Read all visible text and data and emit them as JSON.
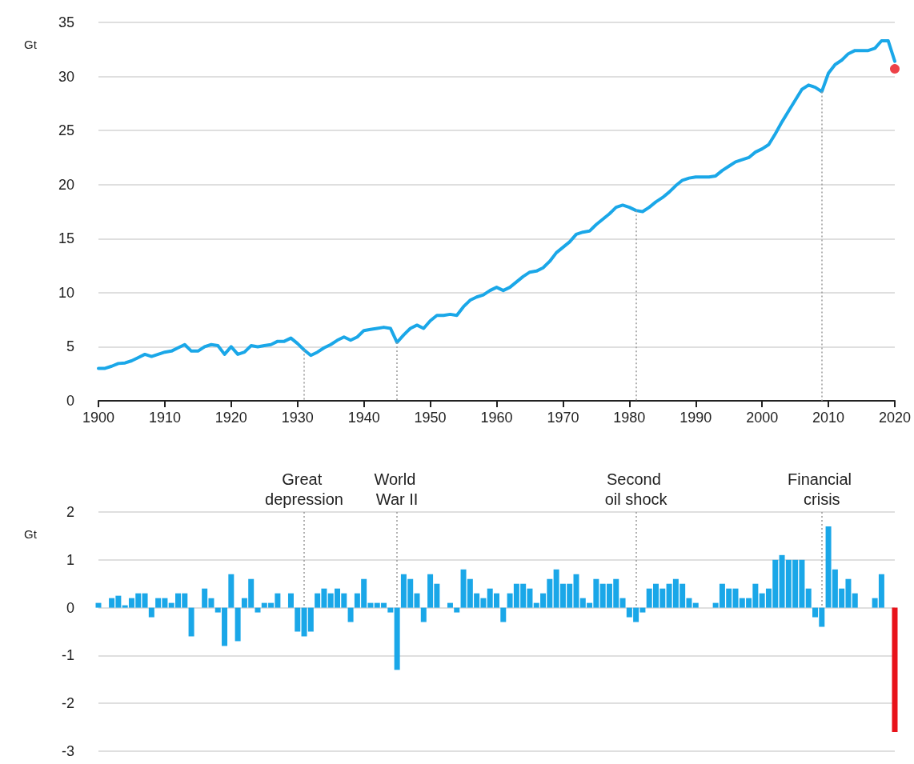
{
  "chart_data": [
    {
      "type": "line",
      "ylabel": "Gt",
      "x": [
        1900,
        1901,
        1902,
        1903,
        1904,
        1905,
        1906,
        1907,
        1908,
        1909,
        1910,
        1911,
        1912,
        1913,
        1914,
        1915,
        1916,
        1917,
        1918,
        1919,
        1920,
        1921,
        1922,
        1923,
        1924,
        1925,
        1926,
        1927,
        1928,
        1929,
        1930,
        1931,
        1932,
        1933,
        1934,
        1935,
        1936,
        1937,
        1938,
        1939,
        1940,
        1941,
        1942,
        1943,
        1944,
        1945,
        1946,
        1947,
        1948,
        1949,
        1950,
        1951,
        1952,
        1953,
        1954,
        1955,
        1956,
        1957,
        1958,
        1959,
        1960,
        1961,
        1962,
        1963,
        1964,
        1965,
        1966,
        1967,
        1968,
        1969,
        1970,
        1971,
        1972,
        1973,
        1974,
        1975,
        1976,
        1977,
        1978,
        1979,
        1980,
        1981,
        1982,
        1983,
        1984,
        1985,
        1986,
        1987,
        1988,
        1989,
        1990,
        1991,
        1992,
        1993,
        1994,
        1995,
        1996,
        1997,
        1998,
        1999,
        2000,
        2001,
        2002,
        2003,
        2004,
        2005,
        2006,
        2007,
        2008,
        2009,
        2010,
        2011,
        2012,
        2013,
        2014,
        2015,
        2016,
        2017,
        2018,
        2019,
        2020
      ],
      "series": [
        {
          "color": "#1aa7e8",
          "values": [
            3.0,
            3.0,
            3.2,
            3.45,
            3.5,
            3.7,
            4.0,
            4.3,
            4.1,
            4.3,
            4.5,
            4.6,
            4.9,
            5.2,
            4.6,
            4.6,
            5.0,
            5.2,
            5.1,
            4.3,
            5.0,
            4.3,
            4.5,
            5.1,
            5.0,
            5.1,
            5.2,
            5.5,
            5.5,
            5.8,
            5.3,
            4.7,
            4.2,
            4.5,
            4.9,
            5.2,
            5.6,
            5.9,
            5.6,
            5.9,
            6.5,
            6.6,
            6.7,
            6.8,
            6.7,
            5.4,
            6.1,
            6.7,
            7.0,
            6.7,
            7.4,
            7.9,
            7.9,
            8.0,
            7.9,
            8.7,
            9.3,
            9.6,
            9.8,
            10.2,
            10.5,
            10.2,
            10.5,
            11.0,
            11.5,
            11.9,
            12.0,
            12.3,
            12.9,
            13.7,
            14.2,
            14.7,
            15.4,
            15.6,
            15.7,
            16.3,
            16.8,
            17.3,
            17.9,
            18.1,
            17.9,
            17.6,
            17.5,
            17.9,
            18.4,
            18.8,
            19.3,
            19.9,
            20.4,
            20.6,
            20.7,
            20.7,
            20.7,
            20.8,
            21.3,
            21.7,
            22.1,
            22.3,
            22.5,
            23.0,
            23.3,
            23.7,
            24.7,
            25.8,
            26.8,
            27.8,
            28.8,
            29.2,
            29.0,
            28.6,
            30.3,
            31.1,
            31.5,
            32.1,
            32.4,
            32.4,
            32.4,
            32.6,
            33.3,
            33.3,
            31.4
          ]
        },
        {
          "type": "scatter",
          "marker": "circle",
          "color": "#e8121a",
          "x": [
            2020
          ],
          "values": [
            30.7
          ]
        }
      ],
      "xlim": [
        1900,
        2020
      ],
      "xticks": [
        1900,
        1910,
        1920,
        1930,
        1940,
        1950,
        1960,
        1970,
        1980,
        1990,
        2000,
        2010,
        2020
      ],
      "ylim": [
        0,
        35
      ],
      "yticks": [
        0,
        5,
        10,
        15,
        20,
        25,
        30,
        35
      ],
      "grid": "y",
      "marker": "none",
      "ref_lines": [
        {
          "axis": "x",
          "value": 1931,
          "color": "#999999",
          "line_style": "dotted"
        },
        {
          "axis": "x",
          "value": 1945,
          "color": "#999999",
          "line_style": "dotted"
        },
        {
          "axis": "x",
          "value": 1981,
          "color": "#999999",
          "line_style": "dotted"
        },
        {
          "axis": "x",
          "value": 2009,
          "color": "#999999",
          "line_style": "dotted"
        }
      ]
    },
    {
      "type": "bar",
      "ylabel": "Gt",
      "x": [
        1900,
        1901,
        1902,
        1903,
        1904,
        1905,
        1906,
        1907,
        1908,
        1909,
        1910,
        1911,
        1912,
        1913,
        1914,
        1915,
        1916,
        1917,
        1918,
        1919,
        1920,
        1921,
        1922,
        1923,
        1924,
        1925,
        1926,
        1927,
        1928,
        1929,
        1930,
        1931,
        1932,
        1933,
        1934,
        1935,
        1936,
        1937,
        1938,
        1939,
        1940,
        1941,
        1942,
        1943,
        1944,
        1945,
        1946,
        1947,
        1948,
        1949,
        1950,
        1951,
        1952,
        1953,
        1954,
        1955,
        1956,
        1957,
        1958,
        1959,
        1960,
        1961,
        1962,
        1963,
        1964,
        1965,
        1966,
        1967,
        1968,
        1969,
        1970,
        1971,
        1972,
        1973,
        1974,
        1975,
        1976,
        1977,
        1978,
        1979,
        1980,
        1981,
        1982,
        1983,
        1984,
        1985,
        1986,
        1987,
        1988,
        1989,
        1990,
        1991,
        1992,
        1993,
        1994,
        1995,
        1996,
        1997,
        1998,
        1999,
        2000,
        2001,
        2002,
        2003,
        2004,
        2005,
        2006,
        2007,
        2008,
        2009,
        2010,
        2011,
        2012,
        2013,
        2014,
        2015,
        2016,
        2017,
        2018,
        2019
      ],
      "series": [
        {
          "color": "#1aa7e8",
          "values": [
            0.1,
            0.0,
            0.2,
            0.25,
            0.05,
            0.2,
            0.3,
            0.3,
            -0.2,
            0.2,
            0.2,
            0.1,
            0.3,
            0.3,
            -0.6,
            0.0,
            0.4,
            0.2,
            -0.1,
            -0.8,
            0.7,
            -0.7,
            0.2,
            0.6,
            -0.1,
            0.1,
            0.1,
            0.3,
            0.0,
            0.3,
            -0.5,
            -0.6,
            -0.5,
            0.3,
            0.4,
            0.3,
            0.4,
            0.3,
            -0.3,
            0.3,
            0.6,
            0.1,
            0.1,
            0.1,
            -0.1,
            -1.3,
            0.7,
            0.6,
            0.3,
            -0.3,
            0.7,
            0.5,
            0.0,
            0.1,
            -0.1,
            0.8,
            0.6,
            0.3,
            0.2,
            0.4,
            0.3,
            -0.3,
            0.3,
            0.5,
            0.5,
            0.4,
            0.1,
            0.3,
            0.6,
            0.8,
            0.5,
            0.5,
            0.7,
            0.2,
            0.1,
            0.6,
            0.5,
            0.5,
            0.6,
            0.2,
            -0.2,
            -0.3,
            -0.1,
            0.4,
            0.5,
            0.4,
            0.5,
            0.6,
            0.5,
            0.2,
            0.1,
            0.0,
            0.0,
            0.1,
            0.5,
            0.4,
            0.4,
            0.2,
            0.2,
            0.5,
            0.3,
            0.4,
            1.0,
            1.1,
            1.0,
            1.0,
            1.0,
            0.4,
            -0.2,
            -0.4,
            1.7,
            0.8,
            0.4,
            0.6,
            0.3,
            0.0,
            0.0,
            0.2,
            0.7,
            0.0
          ]
        },
        {
          "color": "#e8121a",
          "x": [
            2020
          ],
          "values": [
            -2.6
          ]
        }
      ],
      "xlim": [
        1900,
        2020
      ],
      "ylim": [
        -3,
        2
      ],
      "yticks": [
        -3,
        -2,
        -1,
        0,
        1,
        2
      ],
      "grid": "y",
      "tick_labels": "y",
      "ref_lines": [
        {
          "axis": "x",
          "value": 1931,
          "label": "Great depression",
          "color": "#999999",
          "line_style": "dotted"
        },
        {
          "axis": "x",
          "value": 1945,
          "label": "World War II",
          "color": "#999999",
          "line_style": "dotted"
        },
        {
          "axis": "x",
          "value": 1981,
          "label": "Second oil shock",
          "color": "#999999",
          "line_style": "dotted"
        },
        {
          "axis": "x",
          "value": 2009,
          "label": "Financial crisis",
          "color": "#999999",
          "line_style": "dotted"
        }
      ]
    }
  ]
}
